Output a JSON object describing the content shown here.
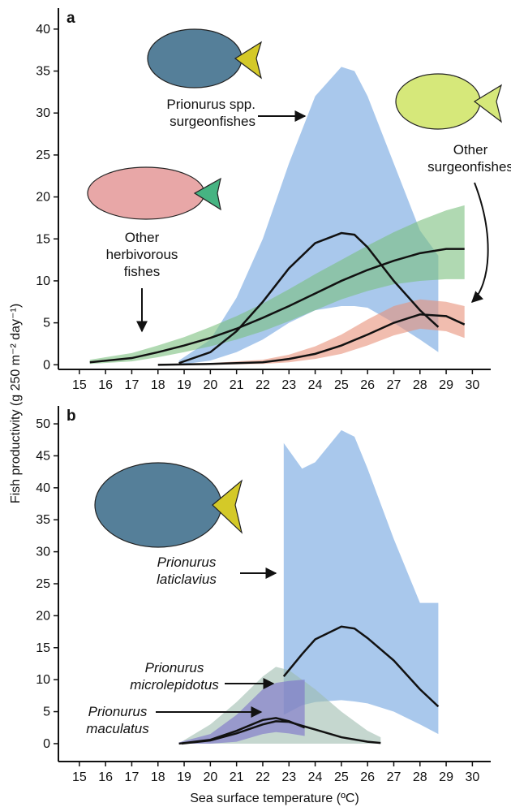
{
  "chart_data": [
    {
      "type": "band-line",
      "panel": "a",
      "ylabel": "Fish productivity (g 250 m⁻² day⁻¹)",
      "xlim": [
        14.2,
        30.7
      ],
      "ylim": [
        -0.55,
        42.5
      ],
      "xticks": [
        15,
        16,
        17,
        18,
        19,
        20,
        21,
        22,
        23,
        24,
        25,
        26,
        27,
        28,
        29,
        30
      ],
      "yticks": [
        0,
        5,
        10,
        15,
        20,
        25,
        30,
        35,
        40
      ],
      "series": [
        {
          "name": "Prionurus spp. surgeonfishes",
          "color": "#6fa3e0",
          "x": [
            18.8,
            20,
            21,
            22,
            23,
            24,
            25,
            25.5,
            26,
            27,
            28,
            28.7
          ],
          "values": [
            0.2,
            1.5,
            4,
            7.5,
            11.5,
            14.5,
            15.7,
            15.5,
            14,
            10,
            6.5,
            4.5
          ],
          "upper": [
            0.5,
            3,
            8,
            15,
            24,
            32,
            35.5,
            35,
            32,
            24,
            16,
            13
          ],
          "lower": [
            0,
            0.5,
            1.5,
            3,
            5,
            6.5,
            7,
            7,
            6.8,
            5,
            3,
            1.5
          ]
        },
        {
          "name": "Other herbivorous fishes",
          "color": "#7cc07f",
          "x": [
            15.4,
            17,
            18,
            19,
            20,
            21,
            22,
            23,
            24,
            25,
            26,
            27,
            28,
            29,
            29.7
          ],
          "values": [
            0.3,
            0.8,
            1.5,
            2.3,
            3.2,
            4.3,
            5.6,
            7,
            8.5,
            10,
            11.3,
            12.4,
            13.3,
            13.8,
            13.8
          ],
          "upper": [
            0.6,
            1.4,
            2.3,
            3.3,
            4.5,
            5.8,
            7.3,
            9,
            10.8,
            12.5,
            14.2,
            15.8,
            17.2,
            18.4,
            19
          ],
          "lower": [
            0.1,
            0.4,
            0.9,
            1.5,
            2.2,
            3,
            4,
            5.2,
            6.5,
            7.8,
            8.8,
            9.6,
            10,
            10.2,
            10.2
          ]
        },
        {
          "name": "Other surgeonfishes",
          "color": "#e8917a",
          "x": [
            18,
            20,
            22,
            23,
            24,
            25,
            26,
            27,
            28,
            29,
            29.7
          ],
          "values": [
            0,
            0.1,
            0.3,
            0.7,
            1.3,
            2.3,
            3.6,
            5,
            6,
            5.8,
            4.8
          ],
          "upper": [
            0.1,
            0.2,
            0.6,
            1.2,
            2.2,
            3.6,
            5.4,
            7,
            7.8,
            7.5,
            7
          ],
          "lower": [
            0,
            0,
            0.1,
            0.3,
            0.7,
            1.3,
            2.3,
            3.5,
            4.3,
            4,
            3.2
          ]
        }
      ]
    },
    {
      "type": "band-line",
      "panel": "b",
      "xlabel": "Sea surface temperature (ºC)",
      "xlim": [
        14.2,
        30.7
      ],
      "ylim": [
        -2.8,
        52.8
      ],
      "xticks": [
        15,
        16,
        17,
        18,
        19,
        20,
        21,
        22,
        23,
        24,
        25,
        26,
        27,
        28,
        29,
        30
      ],
      "yticks": [
        0,
        5,
        10,
        15,
        20,
        25,
        30,
        35,
        40,
        45,
        50
      ],
      "series": [
        {
          "name": "Prionurus laticlavius",
          "color": "#6fa3e0",
          "italic": true,
          "x": [
            22.8,
            23.5,
            24,
            25,
            25.5,
            26,
            27,
            28,
            28.7
          ],
          "values": [
            10.5,
            14,
            16.3,
            18.3,
            18,
            16.5,
            13,
            8.5,
            5.8
          ],
          "upper": [
            47,
            43,
            44,
            49,
            48,
            43,
            32,
            22,
            22
          ],
          "lower": [
            4.5,
            6,
            6.5,
            6.8,
            6.6,
            6.3,
            5,
            3,
            1.5
          ]
        },
        {
          "name": "Prionurus microlepidotus",
          "color": "#9fbcaf",
          "italic": true,
          "x": [
            18.9,
            20,
            21,
            22,
            22.5,
            23,
            24,
            25,
            26,
            26.5
          ],
          "values": [
            0,
            0.5,
            1.6,
            3,
            3.5,
            3.4,
            2.2,
            1,
            0.3,
            0.1
          ],
          "upper": [
            0.3,
            3,
            6.5,
            10.5,
            12,
            11.5,
            8.5,
            5,
            2,
            1
          ],
          "lower": [
            0,
            0,
            0,
            0,
            0,
            0,
            0,
            0,
            0,
            0
          ]
        },
        {
          "name": "Prionurus maculatus",
          "color": "#7a6fc9",
          "italic": true,
          "x": [
            18.8,
            20,
            21,
            22,
            22.5,
            23,
            23.6
          ],
          "values": [
            0,
            0.6,
            2,
            3.7,
            4,
            3.5,
            2.5
          ],
          "upper": [
            0.2,
            1.5,
            4.5,
            8.5,
            9.5,
            9.8,
            10
          ],
          "lower": [
            0,
            0,
            0.3,
            1.5,
            1.8,
            1.6,
            1.2
          ]
        }
      ]
    }
  ]
}
